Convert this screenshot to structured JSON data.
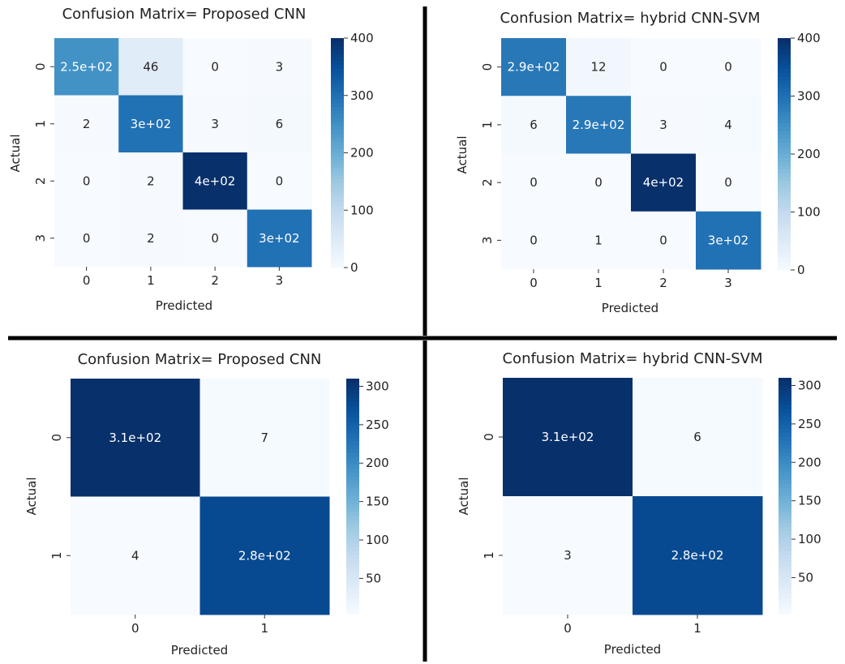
{
  "colors": {
    "low": "#f7fbff",
    "high": "#08306b",
    "divider": "#000000",
    "text": "#222222"
  },
  "chart_data": [
    {
      "type": "heatmap",
      "title": "Confusion Matrix= Proposed CNN",
      "xlabel": "Predicted",
      "ylabel": "Actual",
      "x_ticks": [
        "0",
        "1",
        "2",
        "3"
      ],
      "y_ticks": [
        "0",
        "1",
        "2",
        "3"
      ],
      "values": [
        [
          250,
          46,
          0,
          3
        ],
        [
          2,
          300,
          3,
          6
        ],
        [
          0,
          2,
          400,
          0
        ],
        [
          0,
          2,
          0,
          300
        ]
      ],
      "annotations": [
        [
          "2.5e+02",
          "46",
          "0",
          "3"
        ],
        [
          "2",
          "3e+02",
          "3",
          "6"
        ],
        [
          "0",
          "2",
          "4e+02",
          "0"
        ],
        [
          "0",
          "2",
          "0",
          "3e+02"
        ]
      ],
      "colorbar": {
        "range": [
          0,
          400
        ],
        "ticks": [
          0,
          100,
          200,
          300,
          400
        ],
        "tick_labels": [
          "0",
          "100",
          "200",
          "300",
          "400"
        ]
      }
    },
    {
      "type": "heatmap",
      "title": "Confusion Matrix= hybrid CNN-SVM",
      "xlabel": "Predicted",
      "ylabel": "Actual",
      "x_ticks": [
        "0",
        "1",
        "2",
        "3"
      ],
      "y_ticks": [
        "0",
        "1",
        "2",
        "3"
      ],
      "values": [
        [
          290,
          12,
          0,
          0
        ],
        [
          6,
          290,
          3,
          4
        ],
        [
          0,
          0,
          400,
          0
        ],
        [
          0,
          1,
          0,
          300
        ]
      ],
      "annotations": [
        [
          "2.9e+02",
          "12",
          "0",
          "0"
        ],
        [
          "6",
          "2.9e+02",
          "3",
          "4"
        ],
        [
          "0",
          "0",
          "4e+02",
          "0"
        ],
        [
          "0",
          "1",
          "0",
          "3e+02"
        ]
      ],
      "colorbar": {
        "range": [
          0,
          400
        ],
        "ticks": [
          0,
          100,
          200,
          300,
          400
        ],
        "tick_labels": [
          "0",
          "100",
          "200",
          "300",
          "400"
        ]
      }
    },
    {
      "type": "heatmap",
      "title": "Confusion Matrix= Proposed CNN",
      "xlabel": "Predicted",
      "ylabel": "Actual",
      "x_ticks": [
        "0",
        "1"
      ],
      "y_ticks": [
        "0",
        "1"
      ],
      "values": [
        [
          310,
          7
        ],
        [
          4,
          280
        ]
      ],
      "annotations": [
        [
          "3.1e+02",
          "7"
        ],
        [
          "4",
          "2.8e+02"
        ]
      ],
      "colorbar": {
        "range": [
          4,
          310
        ],
        "ticks": [
          50,
          100,
          150,
          200,
          250,
          300
        ],
        "tick_labels": [
          "50",
          "100",
          "150",
          "200",
          "250",
          "300"
        ]
      }
    },
    {
      "type": "heatmap",
      "title": "Confusion Matrix= hybrid CNN-SVM",
      "xlabel": "Predicted",
      "ylabel": "Actual",
      "x_ticks": [
        "0",
        "1"
      ],
      "y_ticks": [
        "0",
        "1"
      ],
      "values": [
        [
          310,
          6
        ],
        [
          3,
          280
        ]
      ],
      "annotations": [
        [
          "3.1e+02",
          "6"
        ],
        [
          "3",
          "2.8e+02"
        ]
      ],
      "colorbar": {
        "range": [
          3,
          310
        ],
        "ticks": [
          50,
          100,
          150,
          200,
          250,
          300
        ],
        "tick_labels": [
          "50",
          "100",
          "150",
          "200",
          "250",
          "300"
        ]
      }
    }
  ]
}
